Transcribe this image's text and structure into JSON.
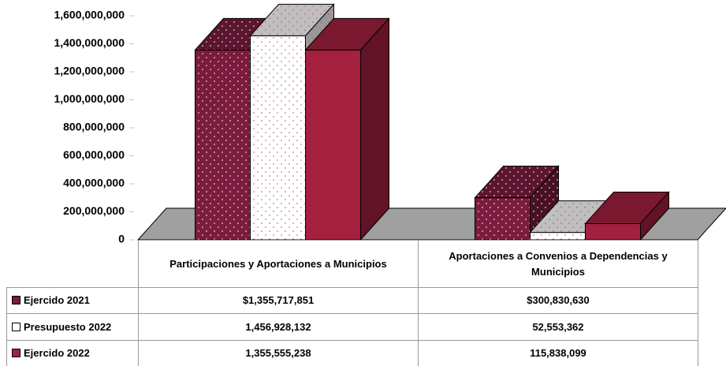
{
  "chart_data": {
    "type": "bar3d",
    "categories": [
      "Participaciones y Aportaciones a Municipios",
      "Aportaciones a Convenios a Dependencias y Municipios"
    ],
    "series": [
      {
        "name": "Ejercido 2021",
        "color": "#7b1c3e",
        "pattern": "dots",
        "values": [
          1355717851,
          300830630
        ],
        "value_labels": [
          "$1,355,717,851",
          "$300,830,630"
        ]
      },
      {
        "name": "Presupuesto 2022",
        "color": "#ffffff",
        "pattern": "dots",
        "values": [
          1456928132,
          52553362
        ],
        "value_labels": [
          "1,456,928,132",
          "52,553,362"
        ]
      },
      {
        "name": "Ejercido 2022",
        "color": "#a3203f",
        "values": [
          1355555238,
          115838099
        ],
        "value_labels": [
          "1,355,555,238",
          "115,838,099"
        ]
      }
    ],
    "ylim": [
      0,
      1600000000
    ],
    "yticks": [
      0,
      {
        "value": 200000000,
        "label": "200,000,000"
      },
      {
        "value": 400000000,
        "label": "400,000,000"
      },
      {
        "value": 600000000,
        "label": "600,000,000"
      },
      {
        "value": 800000000,
        "label": "800,000,000"
      },
      {
        "value": 1000000000,
        "label": "1,000,000,000"
      },
      {
        "value": 1200000000,
        "label": "1,200,000,000"
      },
      {
        "value": 1400000000,
        "label": "1,400,000,000"
      },
      {
        "value": 1600000000,
        "label": "1,600,000,000"
      }
    ]
  }
}
